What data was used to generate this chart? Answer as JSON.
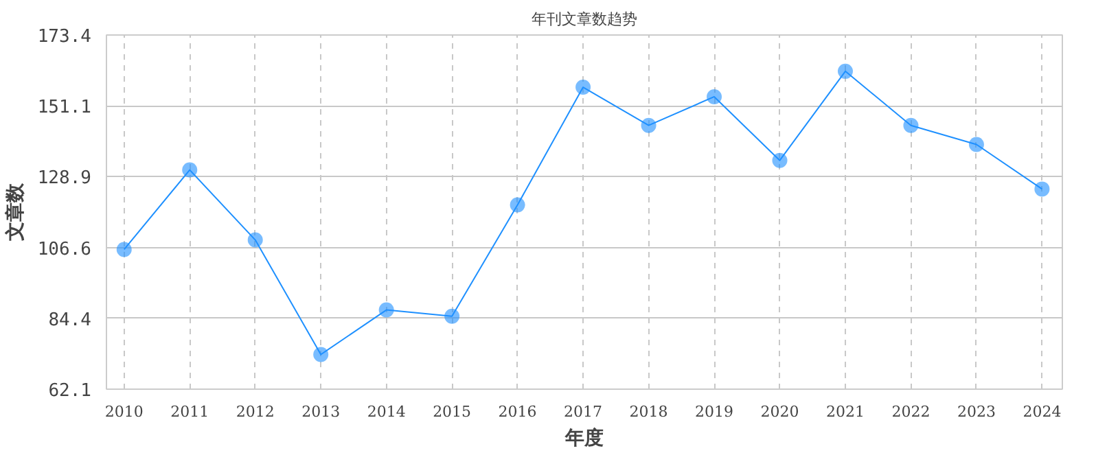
{
  "chart_data": {
    "type": "line",
    "title": "年刊文章数趋势",
    "xlabel": "年度",
    "ylabel": "文章数",
    "categories": [
      "2010",
      "2011",
      "2012",
      "2013",
      "2014",
      "2015",
      "2016",
      "2017",
      "2018",
      "2019",
      "2020",
      "2021",
      "2022",
      "2023",
      "2024"
    ],
    "series": [
      {
        "color": "#1e90ff",
        "values": [
          106,
          131,
          109,
          73,
          87,
          85,
          120,
          157,
          145,
          154,
          134,
          162,
          145,
          139,
          125
        ]
      }
    ],
    "ylim": [
      62.1,
      173.4
    ],
    "yticks": [
      62.1,
      84.4,
      106.6,
      128.9,
      151.1,
      173.4
    ],
    "grid": true,
    "marker": "circle",
    "line_style": "solid"
  }
}
